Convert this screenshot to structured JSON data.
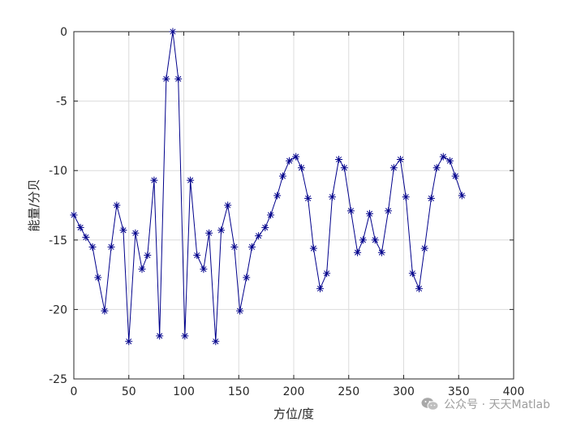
{
  "chart_data": {
    "type": "line",
    "title": "",
    "xlabel": "方位/度",
    "ylabel": "能量/分贝",
    "xlim": [
      0,
      400
    ],
    "ylim": [
      -25,
      0
    ],
    "xticks": [
      0,
      50,
      100,
      150,
      200,
      250,
      300,
      350,
      400
    ],
    "yticks": [
      0,
      -5,
      -10,
      -15,
      -20,
      -25
    ],
    "grid": true,
    "line_color": "#00008b",
    "marker": "asterisk",
    "series": [
      {
        "x": [
          0,
          6,
          11,
          17,
          22,
          28,
          34,
          39,
          45,
          50,
          56,
          62,
          67,
          73,
          78,
          84,
          90,
          95,
          101,
          106,
          112,
          118,
          123,
          129,
          134,
          140,
          146,
          151,
          157,
          162,
          168,
          174,
          179,
          185,
          190,
          196,
          202,
          207,
          213,
          218,
          224,
          230,
          235,
          241,
          246,
          252,
          258,
          263,
          269,
          274,
          280,
          286,
          291,
          297,
          302,
          308,
          314,
          319,
          325,
          330,
          336,
          342,
          347,
          353
        ],
        "y": [
          -13.2,
          -14.1,
          -14.8,
          -15.5,
          -17.7,
          -20.1,
          -15.5,
          -12.5,
          -14.3,
          -22.3,
          -14.5,
          -17.1,
          -16.1,
          -10.7,
          -21.9,
          -3.4,
          0,
          -3.4,
          -21.9,
          -10.7,
          -16.1,
          -17.1,
          -14.5,
          -22.3,
          -14.3,
          -12.5,
          -15.5,
          -20.1,
          -17.7,
          -15.5,
          -14.7,
          -14.1,
          -13.2,
          -11.8,
          -10.4,
          -9.3,
          -9,
          -9.8,
          -12,
          -15.6,
          -18.5,
          -17.4,
          -11.9,
          -9.2,
          -9.8,
          -12.9,
          -15.9,
          -15,
          -13.1,
          -15,
          -15.9,
          -12.9,
          -9.8,
          -9.2,
          -11.9,
          -17.4,
          -18.5,
          -15.6,
          -12,
          -9.8,
          -9,
          -9.3,
          -10.4,
          -11.8
        ]
      }
    ]
  },
  "watermark": {
    "text": "公众号 · 天天Matlab",
    "icon": "wechat-icon"
  }
}
